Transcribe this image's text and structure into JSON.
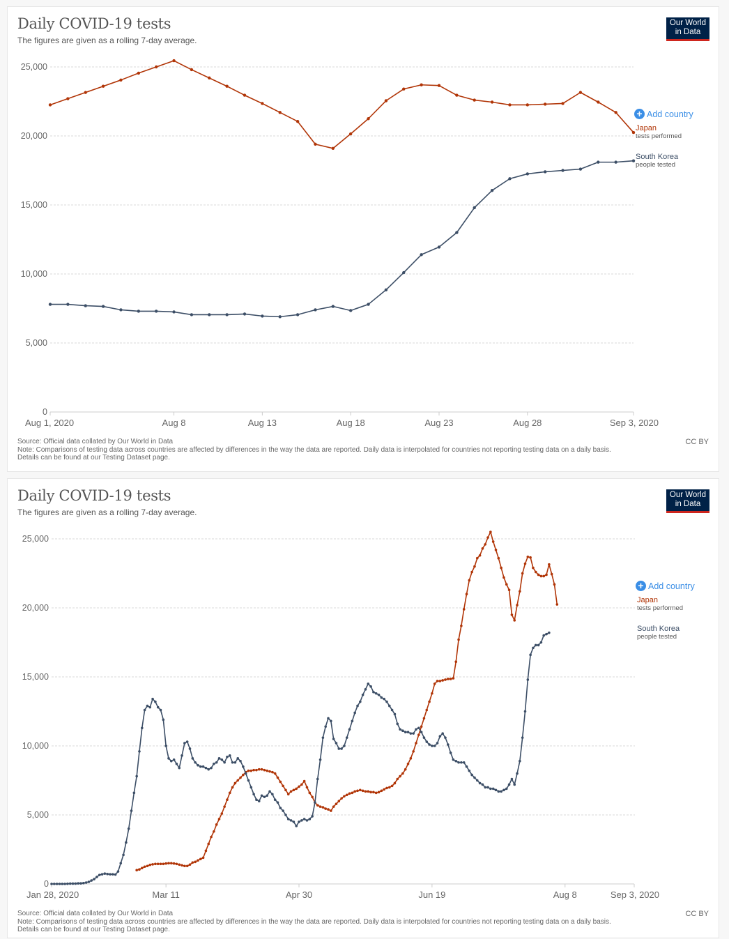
{
  "charts": [
    {
      "title": "Daily COVID-19 tests",
      "subtitle": "The figures are given as a rolling 7-day average.",
      "logo": {
        "line1": "Our World",
        "line2": "in Data"
      },
      "add_country": "Add country",
      "source": "Source: Official data collated by Our World in Data",
      "note": "Note: Comparisons of testing data across countries are affected by differences in the way the data are reported. Daily data is interpolated for countries not reporting testing data on a daily basis.",
      "details": "Details can be found at our Testing Dataset page.",
      "license": "CC BY"
    },
    {
      "title": "Daily COVID-19 tests",
      "subtitle": "The figures are given as a rolling 7-day average.",
      "logo": {
        "line1": "Our World",
        "line2": "in Data"
      },
      "add_country": "Add country",
      "source": "Source: Official data collated by Our World in Data",
      "note": "Note: Comparisons of testing data across countries are affected by differences in the way the data are reported. Daily data is interpolated for countries not reporting testing data on a daily basis.",
      "details": "Details can be found at our Testing Dataset page.",
      "license": "CC BY"
    }
  ],
  "chart_data": [
    {
      "type": "line",
      "title": "Daily COVID-19 tests",
      "subtitle": "The figures are given as a rolling 7-day average.",
      "xlabel": "",
      "ylabel": "",
      "x_range": [
        "Aug 1, 2020",
        "Sep 3, 2020"
      ],
      "x_ticks": [
        {
          "label": "Aug 1, 2020",
          "day": 0
        },
        {
          "label": "Aug 8",
          "day": 7
        },
        {
          "label": "Aug 13",
          "day": 12
        },
        {
          "label": "Aug 18",
          "day": 17
        },
        {
          "label": "Aug 23",
          "day": 22
        },
        {
          "label": "Aug 28",
          "day": 27
        },
        {
          "label": "Sep 3, 2020",
          "day": 33
        }
      ],
      "ylim": [
        0,
        25000
      ],
      "y_ticks": [
        "0",
        "5,000",
        "10,000",
        "15,000",
        "20,000",
        "25,000"
      ],
      "y_tick_values": [
        0,
        5000,
        10000,
        15000,
        20000,
        25000
      ],
      "grid": true,
      "legend": "right, end-of-line labels",
      "series": [
        {
          "name": "Japan",
          "sublabel": "tests performed",
          "color": "#b13507",
          "start_day": 0,
          "values": [
            22250,
            22700,
            23150,
            23600,
            24050,
            24550,
            25000,
            25450,
            24800,
            24200,
            23600,
            22950,
            22350,
            21700,
            21050,
            19400,
            19100,
            20150,
            21250,
            22550,
            23400,
            23700,
            23650,
            22950,
            22600,
            22450,
            22250,
            22250,
            22300,
            22350,
            23150,
            22450,
            21700,
            20250
          ]
        },
        {
          "name": "South Korea",
          "sublabel": "people tested",
          "color": "#3c4e66",
          "start_day": 0,
          "values": [
            7800,
            7800,
            7700,
            7650,
            7400,
            7300,
            7300,
            7250,
            7050,
            7050,
            7050,
            7100,
            6950,
            6900,
            7050,
            7400,
            7650,
            7350,
            7800,
            8850,
            10100,
            11400,
            11950,
            13000,
            14800,
            16050,
            16900,
            17250,
            17400,
            17500,
            17600,
            18100,
            18100,
            18200
          ]
        }
      ]
    },
    {
      "type": "line",
      "title": "Daily COVID-19 tests",
      "subtitle": "The figures are given as a rolling 7-day average.",
      "xlabel": "",
      "ylabel": "",
      "x_range": [
        "Jan 28, 2020",
        "Sep 3, 2020"
      ],
      "x_ticks": [
        {
          "label": "Jan 28, 2020",
          "day": 0
        },
        {
          "label": "Mar 11",
          "day": 43
        },
        {
          "label": "Apr 30",
          "day": 93
        },
        {
          "label": "Jun 19",
          "day": 143
        },
        {
          "label": "Aug 8",
          "day": 193
        },
        {
          "label": "Sep 3, 2020",
          "day": 219
        }
      ],
      "ylim": [
        0,
        25000
      ],
      "y_ticks": [
        "0",
        "5,000",
        "10,000",
        "15,000",
        "20,000",
        "25,000"
      ],
      "y_tick_values": [
        0,
        5000,
        10000,
        15000,
        20000,
        25000
      ],
      "grid": true,
      "legend": "right, end-of-line labels",
      "series": [
        {
          "name": "Japan",
          "sublabel": "tests performed",
          "color": "#b13507",
          "start_day": 32,
          "values": [
            1000,
            1050,
            1150,
            1250,
            1300,
            1380,
            1420,
            1450,
            1450,
            1450,
            1450,
            1480,
            1500,
            1500,
            1480,
            1450,
            1400,
            1350,
            1300,
            1300,
            1400,
            1550,
            1600,
            1700,
            1800,
            1900,
            2400,
            2900,
            3400,
            3800,
            4300,
            4700,
            5100,
            5600,
            6100,
            6600,
            7000,
            7300,
            7500,
            7700,
            7900,
            8100,
            8200,
            8200,
            8250,
            8250,
            8300,
            8300,
            8250,
            8200,
            8150,
            8100,
            8000,
            7700,
            7400,
            7100,
            6800,
            6500,
            6700,
            6800,
            6900,
            7050,
            7200,
            7450,
            7000,
            6600,
            6300,
            5900,
            5700,
            5600,
            5550,
            5450,
            5400,
            5300,
            5600,
            5800,
            6000,
            6200,
            6350,
            6450,
            6550,
            6600,
            6700,
            6750,
            6800,
            6750,
            6700,
            6700,
            6650,
            6650,
            6600,
            6650,
            6750,
            6850,
            6950,
            7000,
            7100,
            7300,
            7600,
            7800,
            8000,
            8300,
            8700,
            9100,
            9600,
            10200,
            10800,
            11400,
            12000,
            12600,
            13200,
            13800,
            14500,
            14700,
            14700,
            14750,
            14800,
            14850,
            14850,
            14900,
            16100,
            17700,
            18700,
            19900,
            21000,
            22000,
            22600,
            23000,
            23600,
            23800,
            24300,
            24600,
            25100,
            25500,
            24800,
            24200,
            23600,
            22900,
            22200,
            21700,
            21300,
            19500,
            19100,
            20200,
            21200,
            22500,
            23200,
            23700,
            23650,
            22900,
            22600,
            22400,
            22300,
            22300,
            22400,
            23150,
            22450,
            21700,
            20250
          ]
        },
        {
          "name": "South Korea",
          "sublabel": "people tested",
          "color": "#3c4e66",
          "start_day": 0,
          "values": [
            0,
            0,
            0,
            0,
            0,
            0,
            10,
            20,
            20,
            20,
            40,
            40,
            60,
            100,
            150,
            250,
            350,
            500,
            650,
            700,
            750,
            720,
            700,
            700,
            680,
            900,
            1500,
            2100,
            3000,
            4000,
            5300,
            6600,
            7800,
            9600,
            11300,
            12600,
            12900,
            12800,
            13400,
            13200,
            12800,
            12600,
            11900,
            10000,
            9100,
            8900,
            9000,
            8700,
            8400,
            9300,
            10200,
            10300,
            9800,
            9100,
            8800,
            8600,
            8500,
            8500,
            8400,
            8300,
            8400,
            8700,
            8800,
            9100,
            9000,
            8800,
            9200,
            9300,
            8800,
            8800,
            9100,
            8900,
            8500,
            8000,
            7500,
            7000,
            6500,
            6100,
            6000,
            6400,
            6300,
            6400,
            6700,
            6500,
            6100,
            5900,
            5500,
            5300,
            5000,
            4700,
            4600,
            4500,
            4200,
            4500,
            4600,
            4700,
            4600,
            4700,
            4900,
            5900,
            7600,
            9000,
            10600,
            11400,
            12000,
            11800,
            10500,
            10200,
            9800,
            9800,
            10000,
            10600,
            11200,
            11800,
            12400,
            12900,
            13200,
            13700,
            14100,
            14500,
            14300,
            13900,
            13800,
            13700,
            13500,
            13400,
            13200,
            12900,
            12600,
            12300,
            11600,
            11200,
            11100,
            11000,
            11000,
            10900,
            10900,
            11200,
            11300,
            11000,
            10600,
            10300,
            10100,
            10000,
            10000,
            10200,
            10700,
            10900,
            10600,
            10100,
            9500,
            9000,
            8900,
            8800,
            8800,
            8800,
            8500,
            8200,
            7900,
            7700,
            7500,
            7300,
            7200,
            7000,
            7000,
            6900,
            6900,
            6800,
            6700,
            6700,
            6800,
            6900,
            7200,
            7600,
            7200,
            8000,
            8900,
            10600,
            12500,
            14800,
            16600,
            17100,
            17300,
            17300,
            17500,
            18000,
            18100,
            18200
          ]
        }
      ]
    }
  ]
}
